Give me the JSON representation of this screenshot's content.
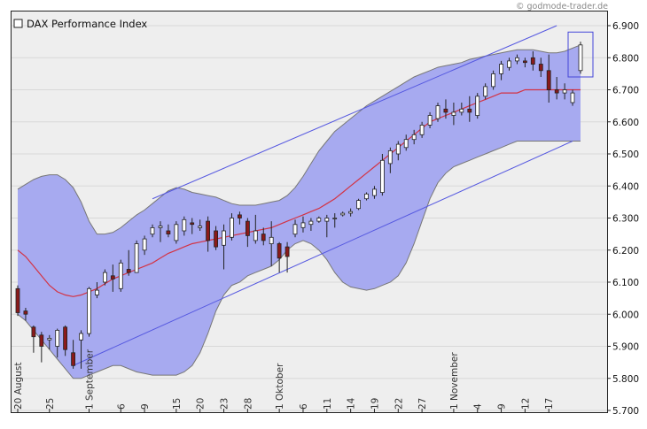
{
  "watermark": "© godmode-trader.de",
  "chart_data": {
    "type": "candlestick",
    "title": "DAX Performance Index",
    "ylim": [
      5700,
      6900
    ],
    "y_ticks": [
      "5.700",
      "5.800",
      "5.900",
      "6.000",
      "6.100",
      "6.200",
      "6.300",
      "6.400",
      "6.500",
      "6.600",
      "6.700",
      "6.800",
      "6.900"
    ],
    "x_labels": [
      {
        "label": "20 August",
        "index": 0
      },
      {
        "label": "25",
        "index": 4
      },
      {
        "label": "1 September",
        "index": 9
      },
      {
        "label": "6",
        "index": 13
      },
      {
        "label": "9",
        "index": 16
      },
      {
        "label": "15",
        "index": 20
      },
      {
        "label": "20",
        "index": 23
      },
      {
        "label": "23",
        "index": 26
      },
      {
        "label": "28",
        "index": 29
      },
      {
        "label": "1 Oktober",
        "index": 33
      },
      {
        "label": "6",
        "index": 36
      },
      {
        "label": "11",
        "index": 39
      },
      {
        "label": "14",
        "index": 42
      },
      {
        "label": "19",
        "index": 45
      },
      {
        "label": "22",
        "index": 48
      },
      {
        "label": "27",
        "index": 51
      },
      {
        "label": "1 November",
        "index": 55
      },
      {
        "label": "4",
        "index": 58
      },
      {
        "label": "9",
        "index": 61
      },
      {
        "label": "12",
        "index": 64
      },
      {
        "label": "17",
        "index": 67
      }
    ],
    "ohlc": [
      [
        6080,
        6090,
        5995,
        6005
      ],
      [
        6010,
        6020,
        5980,
        6000
      ],
      [
        5960,
        5965,
        5880,
        5930
      ],
      [
        5935,
        5945,
        5850,
        5900
      ],
      [
        5920,
        5935,
        5890,
        5925
      ],
      [
        5900,
        5955,
        5865,
        5950
      ],
      [
        5960,
        5965,
        5870,
        5890
      ],
      [
        5880,
        5920,
        5830,
        5840
      ],
      [
        5920,
        5950,
        5830,
        5940
      ],
      [
        5940,
        6085,
        5930,
        6080
      ],
      [
        6060,
        6100,
        6050,
        6075
      ],
      [
        6100,
        6140,
        6090,
        6130
      ],
      [
        6120,
        6155,
        6070,
        6110
      ],
      [
        6080,
        6170,
        6070,
        6160
      ],
      [
        6140,
        6200,
        6120,
        6130
      ],
      [
        6130,
        6230,
        6130,
        6220
      ],
      [
        6200,
        6245,
        6185,
        6235
      ],
      [
        6250,
        6280,
        6240,
        6270
      ],
      [
        6270,
        6290,
        6225,
        6275
      ],
      [
        6260,
        6280,
        6240,
        6250
      ],
      [
        6230,
        6290,
        6220,
        6280
      ],
      [
        6260,
        6305,
        6245,
        6295
      ],
      [
        6285,
        6300,
        6250,
        6280
      ],
      [
        6270,
        6295,
        6260,
        6275
      ],
      [
        6290,
        6305,
        6195,
        6230
      ],
      [
        6260,
        6275,
        6200,
        6210
      ],
      [
        6215,
        6280,
        6140,
        6260
      ],
      [
        6240,
        6315,
        6230,
        6300
      ],
      [
        6310,
        6320,
        6280,
        6300
      ],
      [
        6290,
        6300,
        6210,
        6245
      ],
      [
        6230,
        6310,
        6220,
        6260
      ],
      [
        6250,
        6270,
        6215,
        6230
      ],
      [
        6220,
        6290,
        6150,
        6240
      ],
      [
        6220,
        6225,
        6130,
        6175
      ],
      [
        6210,
        6225,
        6130,
        6180
      ],
      [
        6250,
        6295,
        6240,
        6280
      ],
      [
        6270,
        6305,
        6255,
        6285
      ],
      [
        6280,
        6300,
        6260,
        6290
      ],
      [
        6290,
        6305,
        6285,
        6300
      ],
      [
        6290,
        6310,
        6240,
        6300
      ],
      [
        6300,
        6315,
        6270,
        6300
      ],
      [
        6310,
        6320,
        6305,
        6315
      ],
      [
        6315,
        6330,
        6305,
        6320
      ],
      [
        6330,
        6360,
        6325,
        6355
      ],
      [
        6360,
        6380,
        6355,
        6375
      ],
      [
        6370,
        6400,
        6360,
        6390
      ],
      [
        6380,
        6500,
        6370,
        6480
      ],
      [
        6470,
        6520,
        6440,
        6510
      ],
      [
        6500,
        6540,
        6480,
        6530
      ],
      [
        6520,
        6560,
        6510,
        6545
      ],
      [
        6545,
        6575,
        6530,
        6560
      ],
      [
        6560,
        6600,
        6550,
        6590
      ],
      [
        6590,
        6630,
        6580,
        6620
      ],
      [
        6610,
        6660,
        6600,
        6650
      ],
      [
        6640,
        6670,
        6610,
        6630
      ],
      [
        6620,
        6660,
        6590,
        6630
      ],
      [
        6630,
        6660,
        6620,
        6640
      ],
      [
        6640,
        6680,
        6600,
        6630
      ],
      [
        6620,
        6690,
        6610,
        6680
      ],
      [
        6680,
        6720,
        6670,
        6710
      ],
      [
        6710,
        6760,
        6700,
        6750
      ],
      [
        6750,
        6790,
        6730,
        6780
      ],
      [
        6770,
        6800,
        6760,
        6790
      ],
      [
        6790,
        6810,
        6780,
        6800
      ],
      [
        6790,
        6800,
        6770,
        6785
      ],
      [
        6800,
        6820,
        6760,
        6780
      ],
      [
        6780,
        6800,
        6740,
        6760
      ],
      [
        6760,
        6810,
        6660,
        6700
      ],
      [
        6700,
        6740,
        6670,
        6690
      ],
      [
        6690,
        6720,
        6670,
        6700
      ],
      [
        6660,
        6700,
        6650,
        6690
      ],
      [
        6760,
        6850,
        6750,
        6840
      ]
    ],
    "moving_average": [
      6200,
      6180,
      6150,
      6120,
      6090,
      6070,
      6060,
      6055,
      6060,
      6070,
      6080,
      6095,
      6110,
      6120,
      6130,
      6140,
      6150,
      6160,
      6175,
      6190,
      6200,
      6210,
      6220,
      6225,
      6230,
      6235,
      6240,
      6245,
      6250,
      6255,
      6260,
      6265,
      6270,
      6280,
      6290,
      6300,
      6310,
      6320,
      6330,
      6345,
      6360,
      6380,
      6400,
      6420,
      6440,
      6460,
      6480,
      6500,
      6520,
      6540,
      6560,
      6580,
      6600,
      6610,
      6620,
      6630,
      6640,
      6650,
      6660,
      6670,
      6680,
      6690,
      6690,
      6690,
      6700,
      6700,
      6700,
      6700,
      6700,
      6700,
      6700,
      6700
    ],
    "upper_band": [
      6390,
      6405,
      6420,
      6430,
      6435,
      6435,
      6420,
      6395,
      6350,
      6290,
      6250,
      6250,
      6255,
      6270,
      6290,
      6310,
      6325,
      6345,
      6365,
      6385,
      6395,
      6390,
      6380,
      6375,
      6370,
      6365,
      6355,
      6345,
      6340,
      6340,
      6340,
      6345,
      6350,
      6355,
      6370,
      6395,
      6430,
      6470,
      6510,
      6540,
      6570,
      6590,
      6610,
      6630,
      6650,
      6665,
      6680,
      6695,
      6710,
      6725,
      6740,
      6750,
      6760,
      6770,
      6775,
      6780,
      6785,
      6795,
      6800,
      6805,
      6810,
      6815,
      6820,
      6825,
      6825,
      6825,
      6820,
      6815,
      6815,
      6820,
      6830,
      6840
    ],
    "lower_band": [
      6000,
      5980,
      5950,
      5920,
      5890,
      5860,
      5830,
      5800,
      5800,
      5810,
      5820,
      5830,
      5840,
      5840,
      5830,
      5820,
      5815,
      5810,
      5810,
      5810,
      5810,
      5820,
      5840,
      5880,
      5940,
      6010,
      6060,
      6090,
      6100,
      6120,
      6130,
      6140,
      6150,
      6170,
      6200,
      6220,
      6230,
      6220,
      6200,
      6170,
      6130,
      6100,
      6085,
      6080,
      6075,
      6080,
      6090,
      6100,
      6120,
      6160,
      6220,
      6290,
      6360,
      6410,
      6440,
      6460,
      6470,
      6480,
      6490,
      6500,
      6510,
      6520,
      6530,
      6540,
      6540,
      6540,
      6540,
      6540,
      6540,
      6540,
      6540,
      6540
    ],
    "trend_upper": [
      [
        17,
        6360
      ],
      [
        68,
        6900
      ]
    ],
    "trend_lower": [
      [
        7,
        5840
      ],
      [
        70,
        6540
      ]
    ],
    "colors": {
      "band_fill": "#a7aaf0",
      "band_edge": "#777777",
      "moving_average": "#d33344",
      "trendline": "#5558e0",
      "up_candle": "#ffffff",
      "down_candle": "#8a1a1a",
      "plot_bg": "#eeeeee",
      "grid": "#d8d8d8",
      "highlight_box": "#4447d9"
    },
    "grid": true,
    "legend": "top-left"
  }
}
